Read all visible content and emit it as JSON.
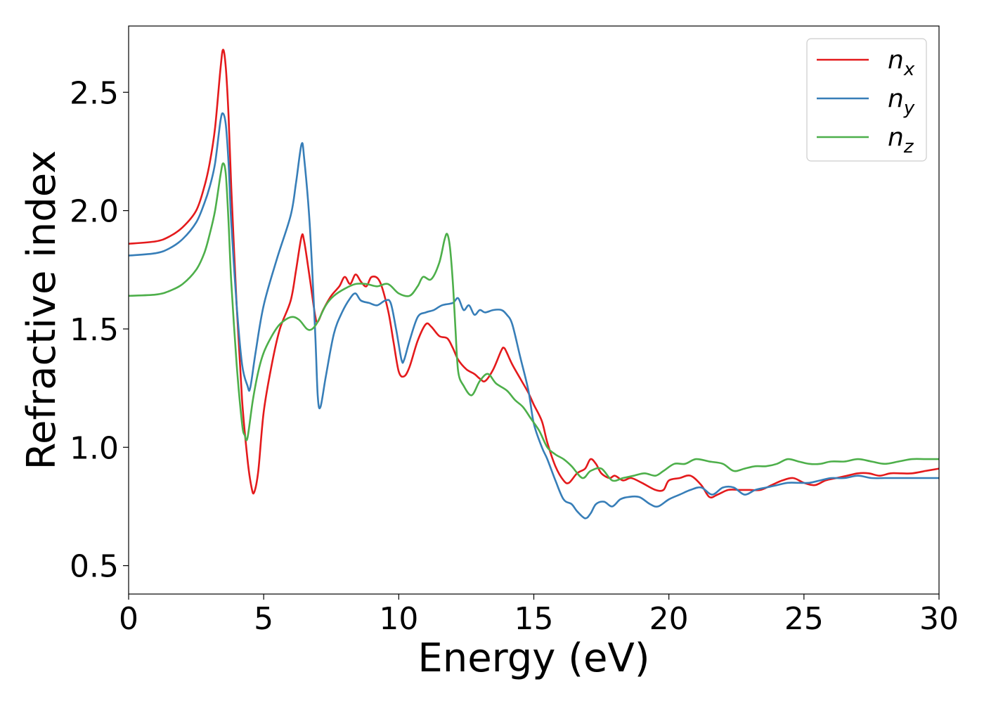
{
  "chart_data": {
    "type": "line",
    "title": "",
    "xlabel": "Energy (eV)",
    "ylabel": "Refractive index",
    "xlim": [
      0,
      30
    ],
    "ylim": [
      0.38,
      2.78
    ],
    "xticks": [
      0,
      5,
      10,
      15,
      20,
      25,
      30
    ],
    "xtick_labels": [
      "0",
      "5",
      "10",
      "15",
      "20",
      "25",
      "30"
    ],
    "yticks": [
      0.5,
      1.0,
      1.5,
      2.0,
      2.5
    ],
    "ytick_labels": [
      "0.5",
      "1.0",
      "1.5",
      "2.0",
      "2.5"
    ],
    "grid": false,
    "legend_position": "top-right",
    "series": [
      {
        "name": "n_x",
        "legend_main": "n",
        "legend_sub": "x",
        "color": "#e41a1c",
        "points": [
          [
            0,
            1.86
          ],
          [
            1,
            1.87
          ],
          [
            1.5,
            1.89
          ],
          [
            2,
            1.93
          ],
          [
            2.5,
            2.0
          ],
          [
            2.8,
            2.1
          ],
          [
            3.0,
            2.2
          ],
          [
            3.2,
            2.35
          ],
          [
            3.4,
            2.6
          ],
          [
            3.5,
            2.68
          ],
          [
            3.6,
            2.6
          ],
          [
            3.7,
            2.4
          ],
          [
            3.8,
            2.1
          ],
          [
            4.0,
            1.6
          ],
          [
            4.2,
            1.2
          ],
          [
            4.4,
            0.95
          ],
          [
            4.55,
            0.83
          ],
          [
            4.65,
            0.81
          ],
          [
            4.8,
            0.9
          ],
          [
            5.0,
            1.15
          ],
          [
            5.3,
            1.35
          ],
          [
            5.6,
            1.5
          ],
          [
            6.0,
            1.62
          ],
          [
            6.2,
            1.75
          ],
          [
            6.4,
            1.89
          ],
          [
            6.5,
            1.87
          ],
          [
            6.7,
            1.72
          ],
          [
            6.9,
            1.56
          ],
          [
            7.0,
            1.53
          ],
          [
            7.2,
            1.58
          ],
          [
            7.5,
            1.64
          ],
          [
            7.8,
            1.68
          ],
          [
            8.0,
            1.72
          ],
          [
            8.2,
            1.69
          ],
          [
            8.4,
            1.73
          ],
          [
            8.6,
            1.7
          ],
          [
            8.8,
            1.68
          ],
          [
            9.0,
            1.72
          ],
          [
            9.3,
            1.7
          ],
          [
            9.6,
            1.58
          ],
          [
            9.8,
            1.45
          ],
          [
            10.0,
            1.32
          ],
          [
            10.2,
            1.3
          ],
          [
            10.4,
            1.34
          ],
          [
            10.7,
            1.45
          ],
          [
            11.0,
            1.52
          ],
          [
            11.2,
            1.51
          ],
          [
            11.5,
            1.47
          ],
          [
            11.8,
            1.46
          ],
          [
            12.0,
            1.42
          ],
          [
            12.2,
            1.37
          ],
          [
            12.5,
            1.33
          ],
          [
            12.8,
            1.31
          ],
          [
            13.0,
            1.29
          ],
          [
            13.2,
            1.28
          ],
          [
            13.5,
            1.33
          ],
          [
            13.8,
            1.41
          ],
          [
            13.9,
            1.42
          ],
          [
            14.0,
            1.4
          ],
          [
            14.2,
            1.35
          ],
          [
            14.5,
            1.29
          ],
          [
            14.8,
            1.23
          ],
          [
            15.0,
            1.18
          ],
          [
            15.3,
            1.11
          ],
          [
            15.5,
            1.02
          ],
          [
            15.8,
            0.92
          ],
          [
            16.1,
            0.86
          ],
          [
            16.3,
            0.85
          ],
          [
            16.6,
            0.89
          ],
          [
            16.9,
            0.91
          ],
          [
            17.1,
            0.95
          ],
          [
            17.3,
            0.93
          ],
          [
            17.5,
            0.89
          ],
          [
            17.8,
            0.87
          ],
          [
            18.0,
            0.88
          ],
          [
            18.3,
            0.86
          ],
          [
            18.6,
            0.87
          ],
          [
            19.0,
            0.85
          ],
          [
            19.5,
            0.82
          ],
          [
            19.8,
            0.82
          ],
          [
            20.0,
            0.86
          ],
          [
            20.4,
            0.87
          ],
          [
            20.8,
            0.88
          ],
          [
            21.2,
            0.84
          ],
          [
            21.5,
            0.79
          ],
          [
            21.8,
            0.8
          ],
          [
            22.2,
            0.82
          ],
          [
            22.6,
            0.82
          ],
          [
            23.0,
            0.82
          ],
          [
            23.4,
            0.82
          ],
          [
            23.8,
            0.84
          ],
          [
            24.2,
            0.86
          ],
          [
            24.6,
            0.87
          ],
          [
            25.0,
            0.85
          ],
          [
            25.4,
            0.84
          ],
          [
            25.8,
            0.86
          ],
          [
            26.2,
            0.87
          ],
          [
            26.6,
            0.88
          ],
          [
            27.0,
            0.89
          ],
          [
            27.4,
            0.89
          ],
          [
            27.8,
            0.88
          ],
          [
            28.2,
            0.89
          ],
          [
            28.6,
            0.89
          ],
          [
            29.0,
            0.89
          ],
          [
            29.5,
            0.9
          ],
          [
            30.0,
            0.91
          ]
        ]
      },
      {
        "name": "n_y",
        "legend_main": "n",
        "legend_sub": "y",
        "color": "#377eb8",
        "points": [
          [
            0,
            1.81
          ],
          [
            1,
            1.82
          ],
          [
            1.5,
            1.84
          ],
          [
            2,
            1.88
          ],
          [
            2.5,
            1.95
          ],
          [
            2.8,
            2.03
          ],
          [
            3.0,
            2.1
          ],
          [
            3.2,
            2.2
          ],
          [
            3.4,
            2.38
          ],
          [
            3.5,
            2.41
          ],
          [
            3.6,
            2.36
          ],
          [
            3.7,
            2.2
          ],
          [
            3.8,
            1.95
          ],
          [
            4.0,
            1.6
          ],
          [
            4.2,
            1.35
          ],
          [
            4.4,
            1.26
          ],
          [
            4.5,
            1.25
          ],
          [
            4.7,
            1.4
          ],
          [
            5.0,
            1.6
          ],
          [
            5.5,
            1.8
          ],
          [
            6.0,
            1.98
          ],
          [
            6.2,
            2.12
          ],
          [
            6.4,
            2.28
          ],
          [
            6.5,
            2.22
          ],
          [
            6.7,
            1.95
          ],
          [
            6.9,
            1.5
          ],
          [
            7.0,
            1.22
          ],
          [
            7.1,
            1.17
          ],
          [
            7.3,
            1.3
          ],
          [
            7.6,
            1.48
          ],
          [
            7.9,
            1.57
          ],
          [
            8.2,
            1.63
          ],
          [
            8.4,
            1.65
          ],
          [
            8.6,
            1.62
          ],
          [
            8.9,
            1.61
          ],
          [
            9.2,
            1.6
          ],
          [
            9.5,
            1.62
          ],
          [
            9.7,
            1.61
          ],
          [
            9.9,
            1.5
          ],
          [
            10.1,
            1.37
          ],
          [
            10.2,
            1.37
          ],
          [
            10.4,
            1.45
          ],
          [
            10.7,
            1.55
          ],
          [
            11.0,
            1.57
          ],
          [
            11.3,
            1.58
          ],
          [
            11.6,
            1.6
          ],
          [
            12.0,
            1.61
          ],
          [
            12.2,
            1.63
          ],
          [
            12.4,
            1.58
          ],
          [
            12.6,
            1.6
          ],
          [
            12.8,
            1.56
          ],
          [
            13.0,
            1.58
          ],
          [
            13.2,
            1.57
          ],
          [
            13.5,
            1.58
          ],
          [
            13.8,
            1.58
          ],
          [
            14.0,
            1.56
          ],
          [
            14.2,
            1.52
          ],
          [
            14.5,
            1.38
          ],
          [
            14.8,
            1.24
          ],
          [
            15.0,
            1.1
          ],
          [
            15.3,
            1.0
          ],
          [
            15.5,
            0.95
          ],
          [
            15.8,
            0.86
          ],
          [
            16.1,
            0.78
          ],
          [
            16.4,
            0.76
          ],
          [
            16.6,
            0.73
          ],
          [
            16.9,
            0.7
          ],
          [
            17.1,
            0.72
          ],
          [
            17.3,
            0.76
          ],
          [
            17.6,
            0.77
          ],
          [
            17.9,
            0.75
          ],
          [
            18.2,
            0.78
          ],
          [
            18.5,
            0.79
          ],
          [
            18.9,
            0.79
          ],
          [
            19.3,
            0.76
          ],
          [
            19.6,
            0.75
          ],
          [
            20.0,
            0.78
          ],
          [
            20.4,
            0.8
          ],
          [
            20.8,
            0.82
          ],
          [
            21.2,
            0.83
          ],
          [
            21.6,
            0.8
          ],
          [
            22.0,
            0.83
          ],
          [
            22.4,
            0.83
          ],
          [
            22.8,
            0.8
          ],
          [
            23.2,
            0.82
          ],
          [
            23.6,
            0.83
          ],
          [
            24.0,
            0.84
          ],
          [
            24.4,
            0.85
          ],
          [
            24.8,
            0.85
          ],
          [
            25.2,
            0.85
          ],
          [
            25.6,
            0.86
          ],
          [
            26.0,
            0.87
          ],
          [
            26.5,
            0.87
          ],
          [
            27.0,
            0.88
          ],
          [
            27.5,
            0.87
          ],
          [
            28.0,
            0.87
          ],
          [
            28.5,
            0.87
          ],
          [
            29.0,
            0.87
          ],
          [
            29.5,
            0.87
          ],
          [
            30.0,
            0.87
          ]
        ]
      },
      {
        "name": "n_z",
        "legend_main": "n",
        "legend_sub": "z",
        "color": "#4daf4a",
        "points": [
          [
            0,
            1.64
          ],
          [
            1,
            1.645
          ],
          [
            1.5,
            1.66
          ],
          [
            2,
            1.69
          ],
          [
            2.5,
            1.75
          ],
          [
            2.8,
            1.82
          ],
          [
            3.0,
            1.9
          ],
          [
            3.2,
            2.0
          ],
          [
            3.4,
            2.15
          ],
          [
            3.5,
            2.2
          ],
          [
            3.6,
            2.15
          ],
          [
            3.7,
            1.95
          ],
          [
            3.8,
            1.7
          ],
          [
            4.0,
            1.35
          ],
          [
            4.2,
            1.1
          ],
          [
            4.3,
            1.05
          ],
          [
            4.4,
            1.04
          ],
          [
            4.6,
            1.2
          ],
          [
            4.8,
            1.32
          ],
          [
            5.0,
            1.4
          ],
          [
            5.3,
            1.47
          ],
          [
            5.6,
            1.52
          ],
          [
            6.0,
            1.55
          ],
          [
            6.3,
            1.54
          ],
          [
            6.6,
            1.5
          ],
          [
            6.8,
            1.5
          ],
          [
            7.0,
            1.53
          ],
          [
            7.3,
            1.6
          ],
          [
            7.6,
            1.64
          ],
          [
            8.0,
            1.67
          ],
          [
            8.4,
            1.69
          ],
          [
            8.8,
            1.69
          ],
          [
            9.2,
            1.68
          ],
          [
            9.6,
            1.69
          ],
          [
            10.0,
            1.65
          ],
          [
            10.4,
            1.64
          ],
          [
            10.7,
            1.68
          ],
          [
            10.9,
            1.72
          ],
          [
            11.2,
            1.71
          ],
          [
            11.5,
            1.78
          ],
          [
            11.7,
            1.88
          ],
          [
            11.8,
            1.9
          ],
          [
            11.9,
            1.84
          ],
          [
            12.0,
            1.7
          ],
          [
            12.1,
            1.5
          ],
          [
            12.2,
            1.32
          ],
          [
            12.4,
            1.26
          ],
          [
            12.7,
            1.22
          ],
          [
            13.0,
            1.28
          ],
          [
            13.3,
            1.31
          ],
          [
            13.6,
            1.27
          ],
          [
            14.0,
            1.24
          ],
          [
            14.3,
            1.2
          ],
          [
            14.6,
            1.17
          ],
          [
            14.9,
            1.12
          ],
          [
            15.2,
            1.07
          ],
          [
            15.5,
            1.0
          ],
          [
            15.8,
            0.97
          ],
          [
            16.1,
            0.95
          ],
          [
            16.4,
            0.92
          ],
          [
            16.8,
            0.87
          ],
          [
            17.1,
            0.9
          ],
          [
            17.5,
            0.91
          ],
          [
            17.9,
            0.86
          ],
          [
            18.3,
            0.87
          ],
          [
            18.7,
            0.88
          ],
          [
            19.1,
            0.89
          ],
          [
            19.5,
            0.88
          ],
          [
            19.8,
            0.9
          ],
          [
            20.2,
            0.93
          ],
          [
            20.6,
            0.93
          ],
          [
            21.0,
            0.95
          ],
          [
            21.5,
            0.94
          ],
          [
            22.0,
            0.93
          ],
          [
            22.4,
            0.9
          ],
          [
            22.8,
            0.91
          ],
          [
            23.2,
            0.92
          ],
          [
            23.6,
            0.92
          ],
          [
            24.0,
            0.93
          ],
          [
            24.4,
            0.95
          ],
          [
            24.8,
            0.94
          ],
          [
            25.2,
            0.93
          ],
          [
            25.6,
            0.93
          ],
          [
            26.0,
            0.94
          ],
          [
            26.5,
            0.94
          ],
          [
            27.0,
            0.95
          ],
          [
            27.5,
            0.94
          ],
          [
            28.0,
            0.93
          ],
          [
            28.5,
            0.94
          ],
          [
            29.0,
            0.95
          ],
          [
            29.5,
            0.95
          ],
          [
            30.0,
            0.95
          ]
        ]
      }
    ]
  }
}
